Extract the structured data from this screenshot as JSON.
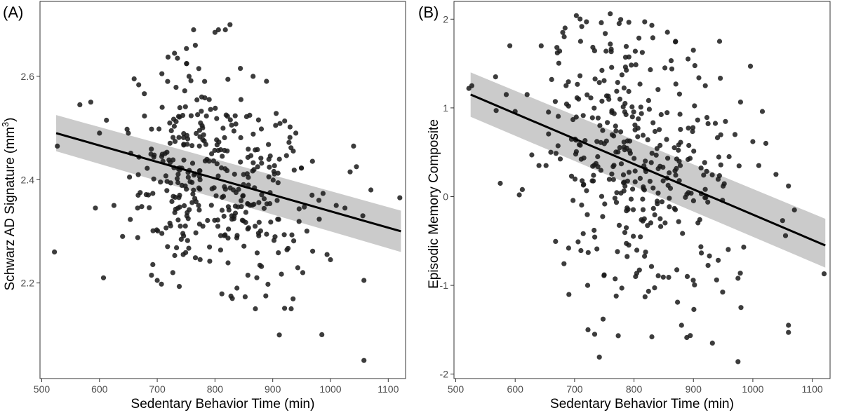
{
  "chart_data": [
    {
      "panel_label": "(A)",
      "type": "scatter",
      "xlabel": "Sedentary Behavior Time (min)",
      "ylabel_main": "Schwarz AD Signature (mm",
      "ylabel_sup": "3",
      "ylabel_close": ")",
      "xlim": [
        497,
        1130
      ],
      "ylim": [
        2.015,
        2.745
      ],
      "x_ticks": [
        500,
        600,
        700,
        800,
        900,
        1000,
        1100
      ],
      "x_tick_labels": [
        "500",
        "600",
        "700",
        "800",
        "900",
        "1000",
        "1100"
      ],
      "y_ticks": [
        2.2,
        2.4,
        2.6
      ],
      "y_tick_labels": [
        "2.2",
        "2.4",
        "2.6"
      ],
      "grid": false,
      "fit": {
        "x": [
          525,
          1122
        ],
        "y": [
          2.49,
          2.3
        ]
      },
      "ci_band": {
        "x": [
          525,
          1122
        ],
        "lower": [
          2.455,
          2.26
        ],
        "upper": [
          2.525,
          2.34
        ]
      },
      "seed": 11,
      "n_points": 400,
      "points": [
        [
          522,
          2.26
        ],
        [
          527,
          2.465
        ],
        [
          566,
          2.545
        ],
        [
          585,
          2.55
        ],
        [
          593,
          2.345
        ],
        [
          600,
          2.49
        ],
        [
          607,
          2.21
        ],
        [
          612,
          2.515
        ],
        [
          625,
          2.35
        ],
        [
          640,
          2.29
        ],
        [
          652,
          2.405
        ],
        [
          660,
          2.595
        ],
        [
          666,
          2.345
        ],
        [
          690,
          2.215
        ],
        [
          700,
          2.205
        ],
        [
          708,
          2.605
        ],
        [
          718,
          2.59
        ],
        [
          727,
          2.22
        ],
        [
          735,
          2.635
        ],
        [
          740,
          2.31
        ],
        [
          745,
          2.255
        ],
        [
          755,
          2.6
        ],
        [
          763,
          2.69
        ],
        [
          766,
          2.66
        ],
        [
          772,
          2.615
        ],
        [
          777,
          2.56
        ],
        [
          782,
          2.59
        ],
        [
          790,
          2.555
        ],
        [
          800,
          2.685
        ],
        [
          806,
          2.69
        ],
        [
          818,
          2.69
        ],
        [
          826,
          2.7
        ],
        [
          830,
          2.17
        ],
        [
          838,
          2.19
        ],
        [
          845,
          2.555
        ],
        [
          857,
          2.215
        ],
        [
          866,
          2.6
        ],
        [
          870,
          2.15
        ],
        [
          888,
          2.175
        ],
        [
          905,
          2.505
        ],
        [
          932,
          2.15
        ],
        [
          940,
          2.49
        ],
        [
          952,
          2.22
        ],
        [
          968,
          2.37
        ],
        [
          980,
          2.36
        ],
        [
          985,
          2.1
        ],
        [
          994,
          2.255
        ],
        [
          1000,
          2.245
        ],
        [
          1010,
          2.35
        ],
        [
          1025,
          2.345
        ],
        [
          1034,
          2.415
        ],
        [
          1040,
          2.465
        ],
        [
          1045,
          2.425
        ],
        [
          1056,
          2.33
        ],
        [
          1058,
          2.205
        ],
        [
          1058,
          2.05
        ],
        [
          1070,
          2.38
        ],
        [
          1120,
          2.365
        ]
      ]
    },
    {
      "panel_label": "(B)",
      "type": "scatter",
      "xlabel": "Sedentary Behavior Time (min)",
      "ylabel_main": "Episodic Memory Composite",
      "ylabel_sup": "",
      "ylabel_close": "",
      "xlim": [
        497,
        1130
      ],
      "ylim": [
        -2.05,
        2.2
      ],
      "x_ticks": [
        500,
        600,
        700,
        800,
        900,
        1000,
        1100
      ],
      "x_tick_labels": [
        "500",
        "600",
        "700",
        "800",
        "900",
        "1000",
        "1100"
      ],
      "y_ticks": [
        -2,
        -1,
        0,
        1,
        2
      ],
      "y_tick_labels": [
        "-2",
        "-1",
        "0",
        "1",
        "2"
      ],
      "grid": false,
      "fit": {
        "x": [
          525,
          1122
        ],
        "y": [
          1.15,
          -0.55
        ]
      },
      "ci_band": {
        "x": [
          525,
          1122
        ],
        "lower": [
          0.9,
          -0.8
        ],
        "upper": [
          1.4,
          -0.25
        ]
      },
      "seed": 29,
      "n_points": 400,
      "points": [
        [
          522,
          1.22
        ],
        [
          527,
          1.25
        ],
        [
          567,
          1.35
        ],
        [
          568,
          0.97
        ],
        [
          575,
          0.15
        ],
        [
          585,
          1.15
        ],
        [
          591,
          1.7
        ],
        [
          600,
          0.96
        ],
        [
          607,
          0.02
        ],
        [
          612,
          0.08
        ],
        [
          620,
          1.15
        ],
        [
          628,
          0.47
        ],
        [
          640,
          0.35
        ],
        [
          652,
          0.35
        ],
        [
          660,
          0.5
        ],
        [
          671,
          1.62
        ],
        [
          680,
          1.85
        ],
        [
          684,
          1.9
        ],
        [
          703,
          2.04
        ],
        [
          710,
          1.75
        ],
        [
          720,
          1.97
        ],
        [
          745,
          1.96
        ],
        [
          760,
          2.06
        ],
        [
          775,
          1.95
        ],
        [
          818,
          1.97
        ],
        [
          830,
          1.93
        ],
        [
          852,
          1.45
        ],
        [
          870,
          1.75
        ],
        [
          900,
          1.65
        ],
        [
          920,
          1.25
        ],
        [
          944,
          1.75
        ],
        [
          960,
          0.45
        ],
        [
          970,
          0.7
        ],
        [
          975,
          -0.92
        ],
        [
          975,
          -1.86
        ],
        [
          980,
          -1.25
        ],
        [
          996,
          1.47
        ],
        [
          1000,
          0.62
        ],
        [
          1010,
          0.35
        ],
        [
          1016,
          0.96
        ],
        [
          1022,
          0.6
        ],
        [
          1039,
          0.25
        ],
        [
          1050,
          -0.27
        ],
        [
          1055,
          -0.44
        ],
        [
          1060,
          -1.45
        ],
        [
          1060,
          -1.53
        ],
        [
          1060,
          0.12
        ],
        [
          1070,
          -0.15
        ],
        [
          1120,
          -0.87
        ],
        [
          932,
          -1.65
        ],
        [
          880,
          -1.45
        ],
        [
          830,
          -1.58
        ],
        [
          748,
          -1.38
        ],
        [
          770,
          -1.12
        ],
        [
          722,
          -1.0
        ],
        [
          690,
          -0.58
        ]
      ]
    }
  ]
}
